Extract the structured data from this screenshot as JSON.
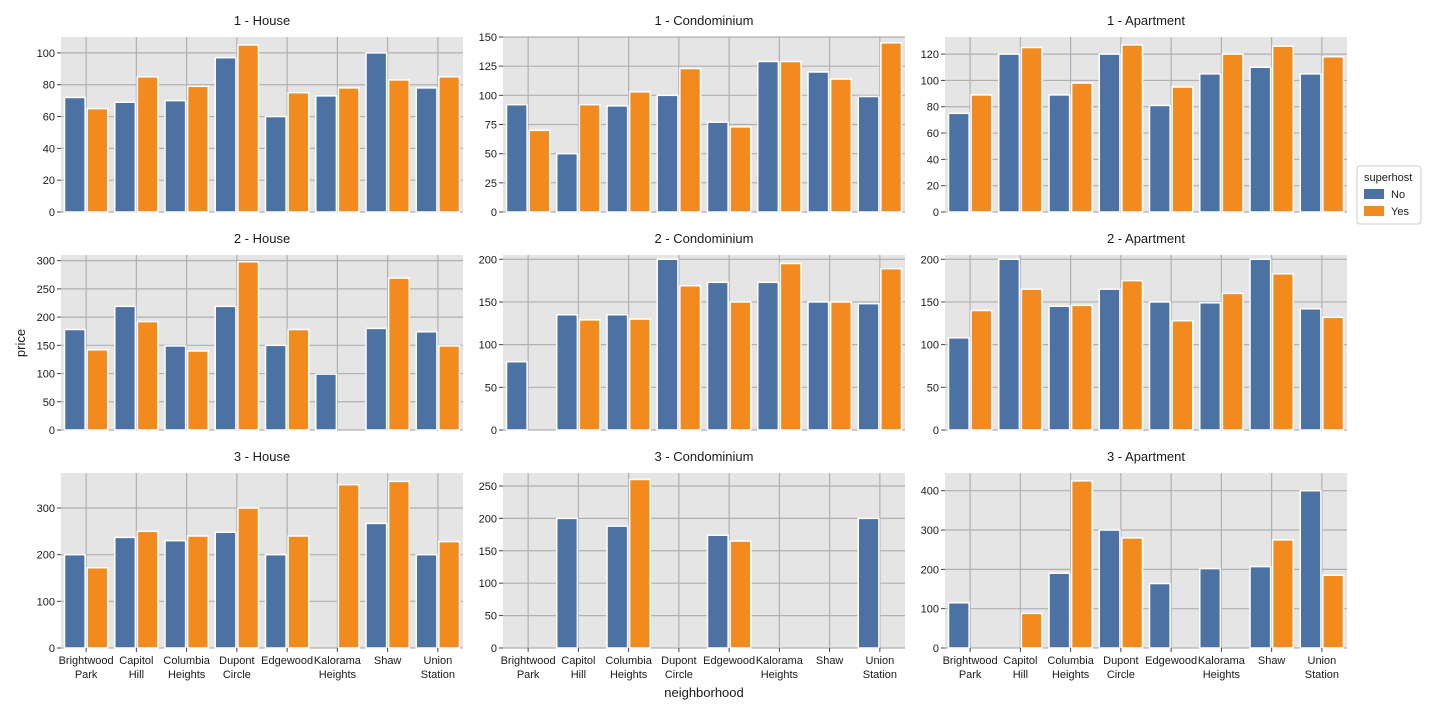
{
  "chart_data": {
    "type": "bar",
    "xlabel": "neighborhood",
    "ylabel": "price",
    "grid": true,
    "legend": {
      "title": "superhost",
      "placement": "right",
      "entries": [
        "No",
        "Yes"
      ]
    },
    "colors": {
      "No": "#4c72a4",
      "Yes": "#f28a1e",
      "background": "#e5e5e5",
      "grid": "#b0b0b0"
    },
    "categories": [
      [
        "Brightwood",
        "Park"
      ],
      [
        "Capitol",
        "Hill"
      ],
      [
        "Columbia",
        "Heights"
      ],
      [
        "Dupont",
        "Circle"
      ],
      [
        "Edgewood"
      ],
      [
        "Kalorama",
        "Heights"
      ],
      [
        "Shaw"
      ],
      [
        "Union",
        "Station"
      ]
    ],
    "panels": [
      {
        "title": "1 - House",
        "ylim": [
          0,
          110
        ],
        "yticks": [
          0,
          20,
          40,
          60,
          80,
          100
        ],
        "series": [
          {
            "name": "No",
            "values": [
              72,
              69,
              70,
              97,
              60,
              73,
              100,
              78
            ]
          },
          {
            "name": "Yes",
            "values": [
              65,
              85,
              79,
              105,
              75,
              78,
              83,
              85
            ]
          }
        ]
      },
      {
        "title": "1 - Condominium",
        "ylim": [
          0,
          150
        ],
        "yticks": [
          0,
          25,
          50,
          75,
          100,
          125,
          150
        ],
        "series": [
          {
            "name": "No",
            "values": [
              92,
              50,
              91,
              100,
              77,
              129,
              120,
              99
            ]
          },
          {
            "name": "Yes",
            "values": [
              70,
              92,
              103,
              123,
              73,
              129,
              114,
              145
            ]
          }
        ]
      },
      {
        "title": "1 - Apartment",
        "ylim": [
          0,
          133
        ],
        "yticks": [
          0,
          20,
          40,
          60,
          80,
          100,
          120
        ],
        "series": [
          {
            "name": "No",
            "values": [
              75,
              120,
              89,
              120,
              81,
              105,
              110,
              105
            ]
          },
          {
            "name": "Yes",
            "values": [
              89,
              125,
              98,
              127,
              95,
              120,
              126,
              118
            ]
          }
        ]
      },
      {
        "title": "2 - House",
        "ylim": [
          0,
          310
        ],
        "yticks": [
          0,
          50,
          100,
          150,
          200,
          250,
          300
        ],
        "series": [
          {
            "name": "No",
            "values": [
              178,
              219,
              149,
              219,
              150,
              99,
              180,
              174
            ]
          },
          {
            "name": "Yes",
            "values": [
              142,
              192,
              140,
              298,
              178,
              null,
              269,
              149
            ]
          }
        ]
      },
      {
        "title": "2 - Condominium",
        "ylim": [
          0,
          205
        ],
        "yticks": [
          0,
          50,
          100,
          150,
          200
        ],
        "series": [
          {
            "name": "No",
            "values": [
              80,
              135,
              135,
              200,
              173,
              173,
              150,
              148
            ]
          },
          {
            "name": "Yes",
            "values": [
              null,
              129,
              130,
              169,
              150,
              195,
              150,
              189
            ]
          }
        ]
      },
      {
        "title": "2 - Apartment",
        "ylim": [
          0,
          205
        ],
        "yticks": [
          0,
          50,
          100,
          150,
          200
        ],
        "series": [
          {
            "name": "No",
            "values": [
              108,
              200,
              145,
              165,
              150,
              149,
              200,
              142
            ]
          },
          {
            "name": "Yes",
            "values": [
              140,
              165,
              146,
              175,
              128,
              160,
              183,
              132
            ]
          }
        ]
      },
      {
        "title": "3 - House",
        "ylim": [
          0,
          375
        ],
        "yticks": [
          0,
          100,
          200,
          300
        ],
        "series": [
          {
            "name": "No",
            "values": [
              200,
              237,
              230,
              248,
              200,
              null,
              267,
              200
            ]
          },
          {
            "name": "Yes",
            "values": [
              172,
              250,
              240,
              300,
              240,
              350,
              357,
              228
            ]
          }
        ]
      },
      {
        "title": "3 - Condominium",
        "ylim": [
          0,
          270
        ],
        "yticks": [
          0,
          50,
          100,
          150,
          200,
          250
        ],
        "series": [
          {
            "name": "No",
            "values": [
              null,
              200,
              188,
              null,
              174,
              null,
              null,
              200
            ]
          },
          {
            "name": "Yes",
            "values": [
              null,
              null,
              260,
              null,
              165,
              null,
              null,
              null
            ]
          }
        ]
      },
      {
        "title": "3 - Apartment",
        "ylim": [
          0,
          445
        ],
        "yticks": [
          0,
          100,
          200,
          300,
          400
        ],
        "series": [
          {
            "name": "No",
            "values": [
              115,
              null,
              190,
              300,
              164,
              202,
              207,
              400
            ]
          },
          {
            "name": "Yes",
            "values": [
              null,
              88,
              425,
              280,
              null,
              null,
              275,
              185
            ]
          }
        ]
      }
    ]
  }
}
